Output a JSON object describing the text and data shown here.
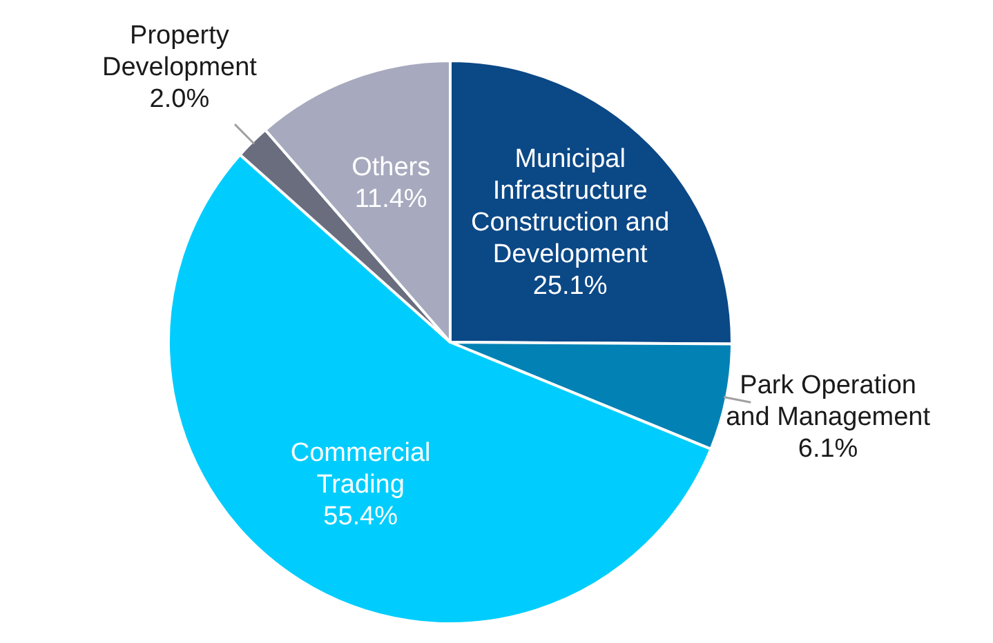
{
  "chart_data": {
    "type": "pie",
    "categories": [
      "Municipal Infrastructure Construction and Development",
      "Park Operation and Management",
      "Commercial Trading",
      "Property Development",
      "Others"
    ],
    "values": [
      25.1,
      6.1,
      55.4,
      2.0,
      11.4
    ],
    "value_labels": [
      "25.1%",
      "6.1%",
      "55.4%",
      "2.0%",
      "11.4%"
    ],
    "colors": [
      "#0b4886",
      "#0282b4",
      "#00cdfd",
      "#696d7e",
      "#a7aabe"
    ],
    "legend": false
  }
}
